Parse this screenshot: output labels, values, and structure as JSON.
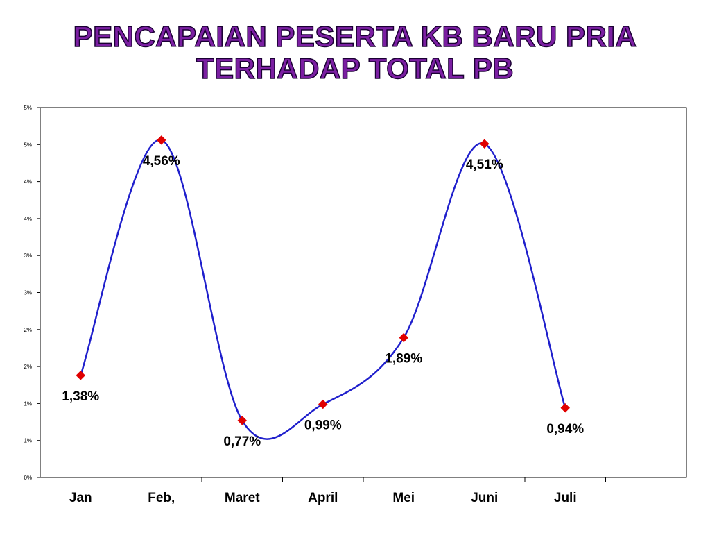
{
  "title_line1": "PENCAPAIAN PESERTA KB BARU  PRIA",
  "title_line2": "TERHADAP  TOTAL  PB",
  "colors": {
    "title_fill": "#7b1fa2",
    "line": "#1f1fcc",
    "marker": "#e00000",
    "plot_border": "#000000"
  },
  "chart_data": {
    "type": "line",
    "smoothed": true,
    "categories": [
      "Jan",
      "Feb,",
      "Maret",
      "April",
      "Mei",
      "Juni",
      "Juli"
    ],
    "series": [
      {
        "values": [
          1.38,
          4.56,
          0.77,
          0.99,
          1.89,
          4.51,
          0.94
        ],
        "data_labels": [
          "1,38%",
          "4,56%",
          "0,77%",
          "0,99%",
          "1,89%",
          "4,51%",
          "0,94%"
        ],
        "marker": "diamond"
      }
    ],
    "ylim": [
      0,
      5
    ],
    "ytick_labels": [
      "0%",
      "1%",
      "1%",
      "2%",
      "2%",
      "3%",
      "3%",
      "4%",
      "4%",
      "5%",
      "5%"
    ],
    "grid": false,
    "legend": "none"
  }
}
